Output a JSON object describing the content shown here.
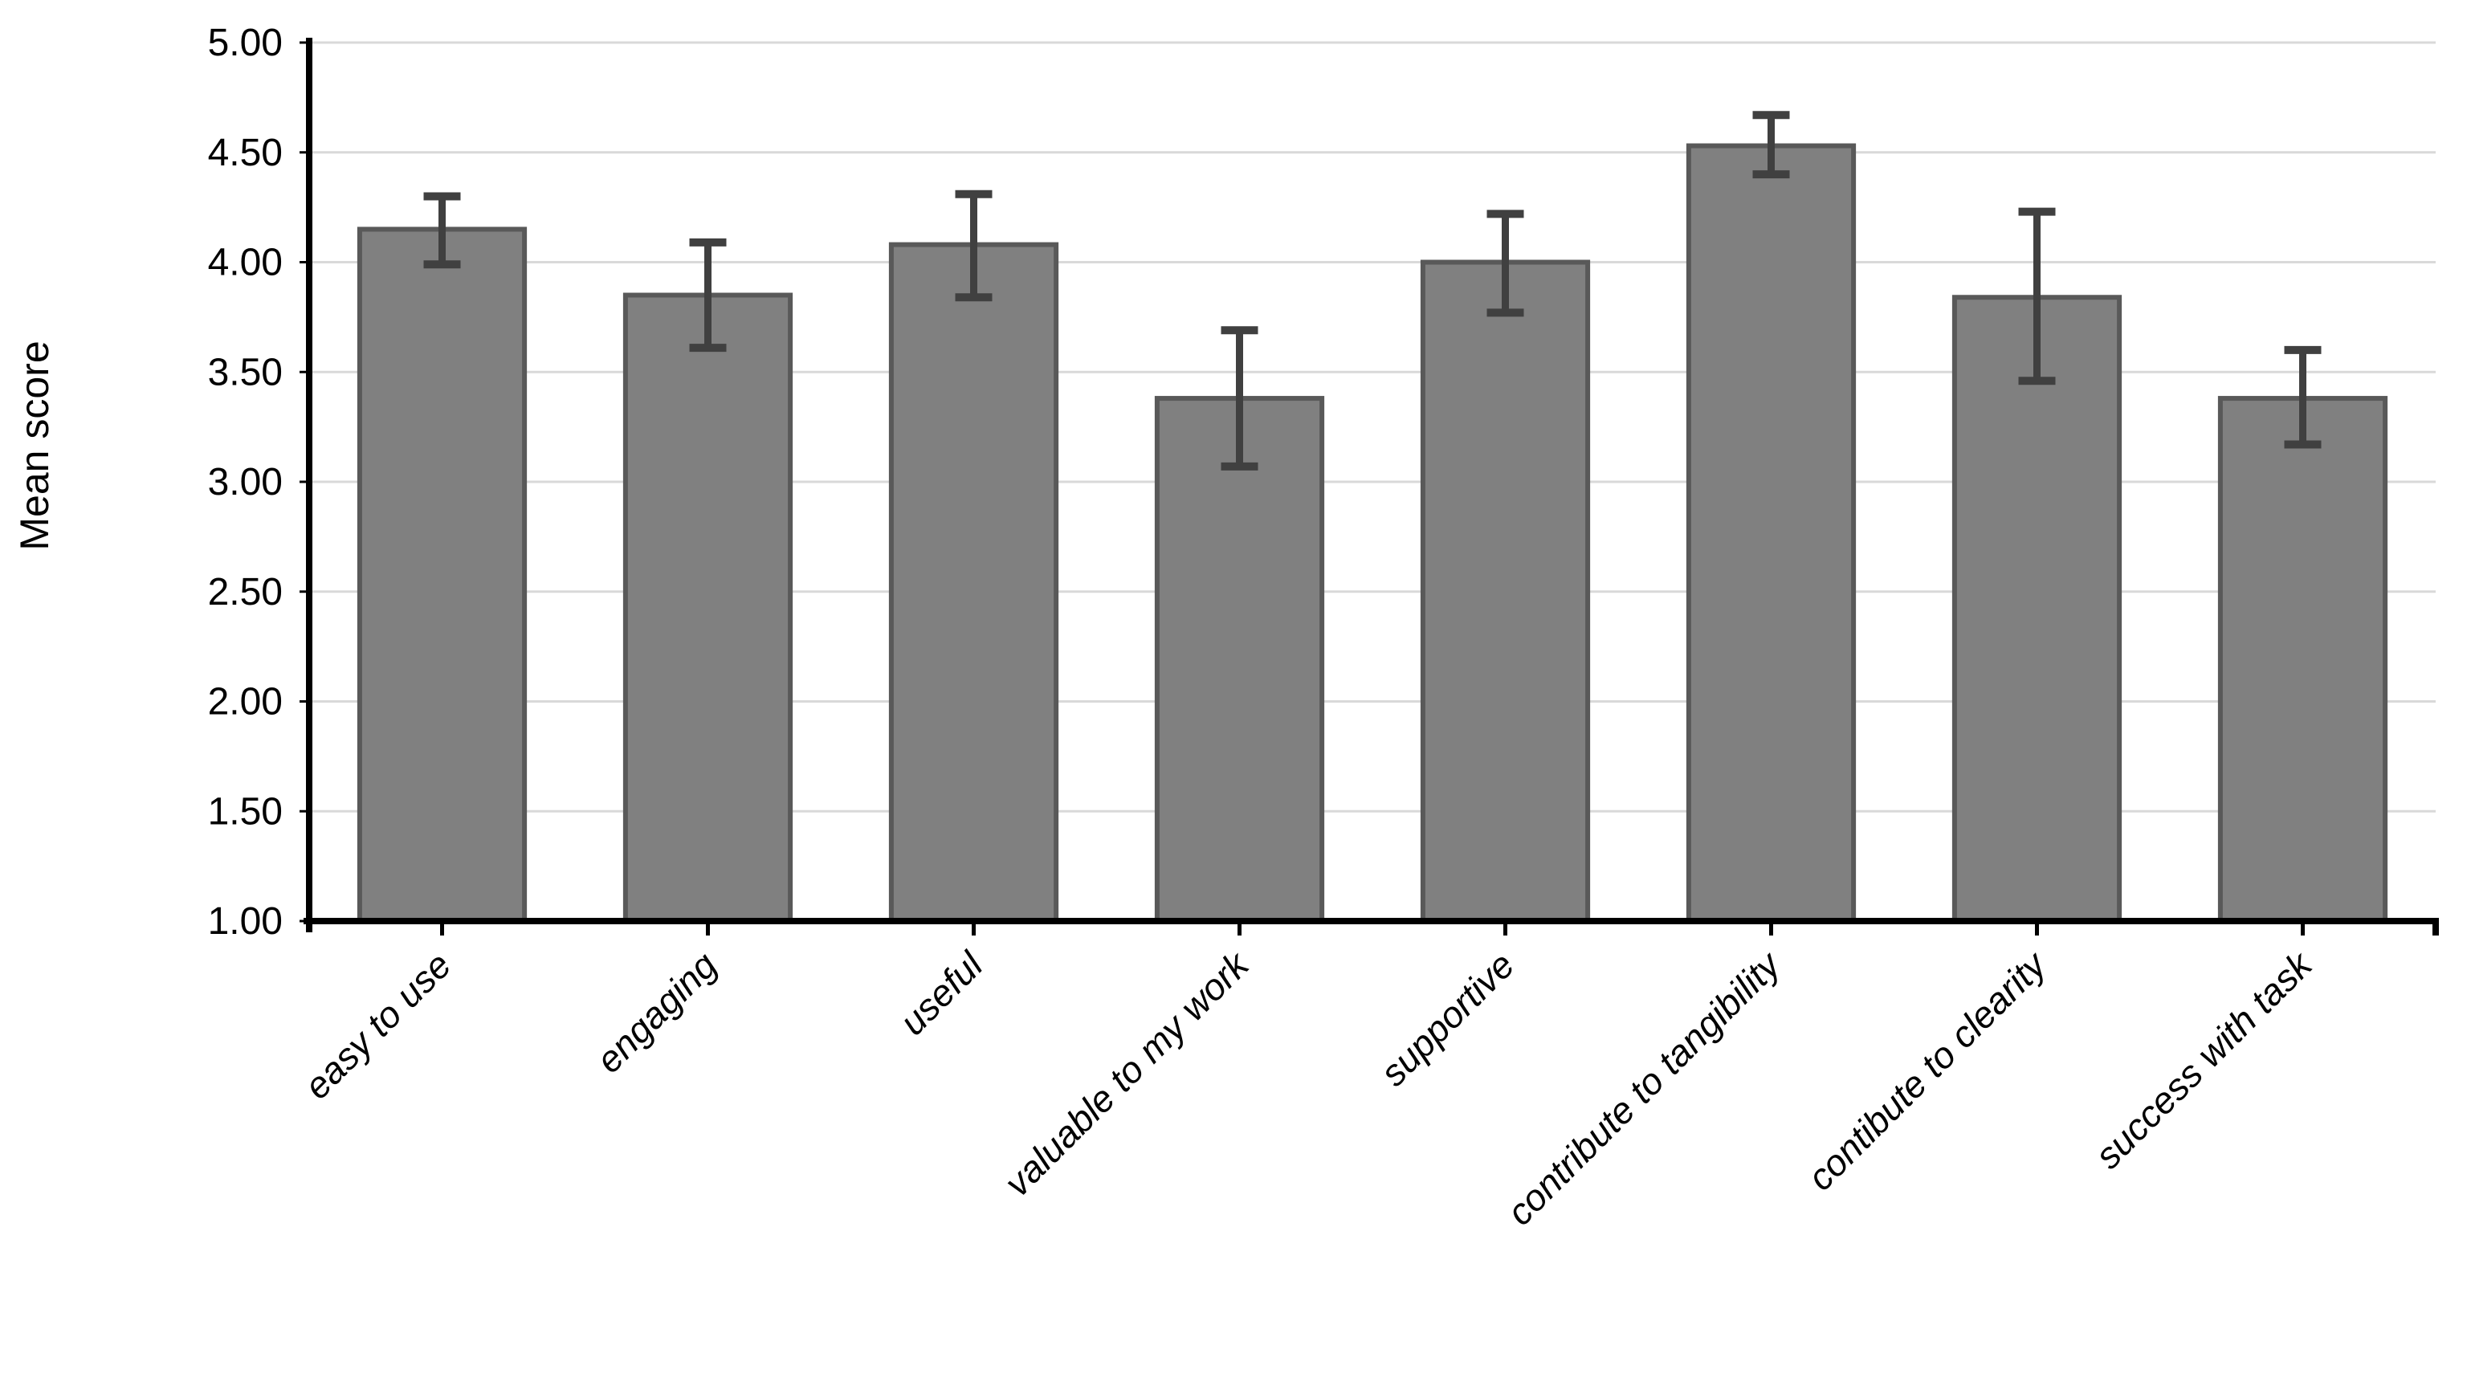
{
  "chart_data": {
    "type": "bar",
    "title": "",
    "xlabel": "",
    "ylabel": "Mean score",
    "categories": [
      "easy to use",
      "engaging",
      "useful",
      "valuable to my work",
      "supportive",
      "contribute to tangibility",
      "contibute to clearity",
      "success with task"
    ],
    "values": [
      4.15,
      3.85,
      4.08,
      3.38,
      4.0,
      4.53,
      3.84,
      3.38
    ],
    "error_low": [
      3.99,
      3.61,
      3.84,
      3.07,
      3.77,
      4.4,
      3.46,
      3.17
    ],
    "error_high": [
      4.3,
      4.09,
      4.31,
      3.69,
      4.22,
      4.67,
      4.23,
      3.6
    ],
    "ylim": [
      1.0,
      5.0
    ],
    "ytick_step": 0.5,
    "ytick_decimals": 2,
    "ytick_labels": [
      "1.00",
      "1.50",
      "2.00",
      "2.50",
      "3.00",
      "3.50",
      "4.00",
      "4.50",
      "5.00"
    ],
    "grid": true,
    "legend_position": "none",
    "bar_width_frac": 0.62,
    "x_label_rotation_deg": -45,
    "colors": {
      "bar_fill": "#808080",
      "bar_stroke": "#595959",
      "error_bar": "#404040",
      "gridline": "#d9d9d9",
      "axis": "#000000",
      "text": "#000000",
      "background": "#ffffff"
    }
  }
}
